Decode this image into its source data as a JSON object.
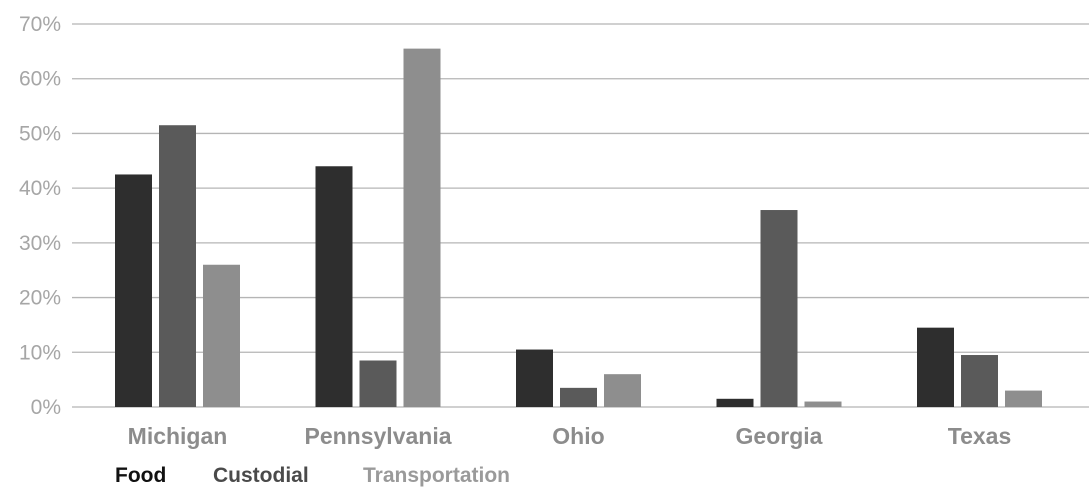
{
  "chart_data": {
    "type": "bar",
    "title": "",
    "xlabel": "",
    "ylabel": "",
    "categories": [
      "Michigan",
      "Pennsylvania",
      "Ohio",
      "Georgia",
      "Texas"
    ],
    "series": [
      {
        "name": "Food",
        "color": "#2e2e2e",
        "values": [
          42.5,
          44,
          10.5,
          1.5,
          14.5
        ]
      },
      {
        "name": "Custodial",
        "color": "#5a5a5a",
        "values": [
          51.5,
          8.5,
          3.5,
          36,
          9.5
        ]
      },
      {
        "name": "Transportation",
        "color": "#8e8e8e",
        "values": [
          26,
          65.5,
          6,
          1,
          3
        ]
      }
    ],
    "ylim": [
      0,
      70
    ],
    "yticks": [
      0,
      10,
      20,
      30,
      40,
      50,
      60,
      70
    ],
    "ytick_labels": [
      "0%",
      "10%",
      "20%",
      "30%",
      "40%",
      "50%",
      "60%",
      "70%"
    ],
    "grid": true,
    "legend_position": "bottom-left"
  }
}
